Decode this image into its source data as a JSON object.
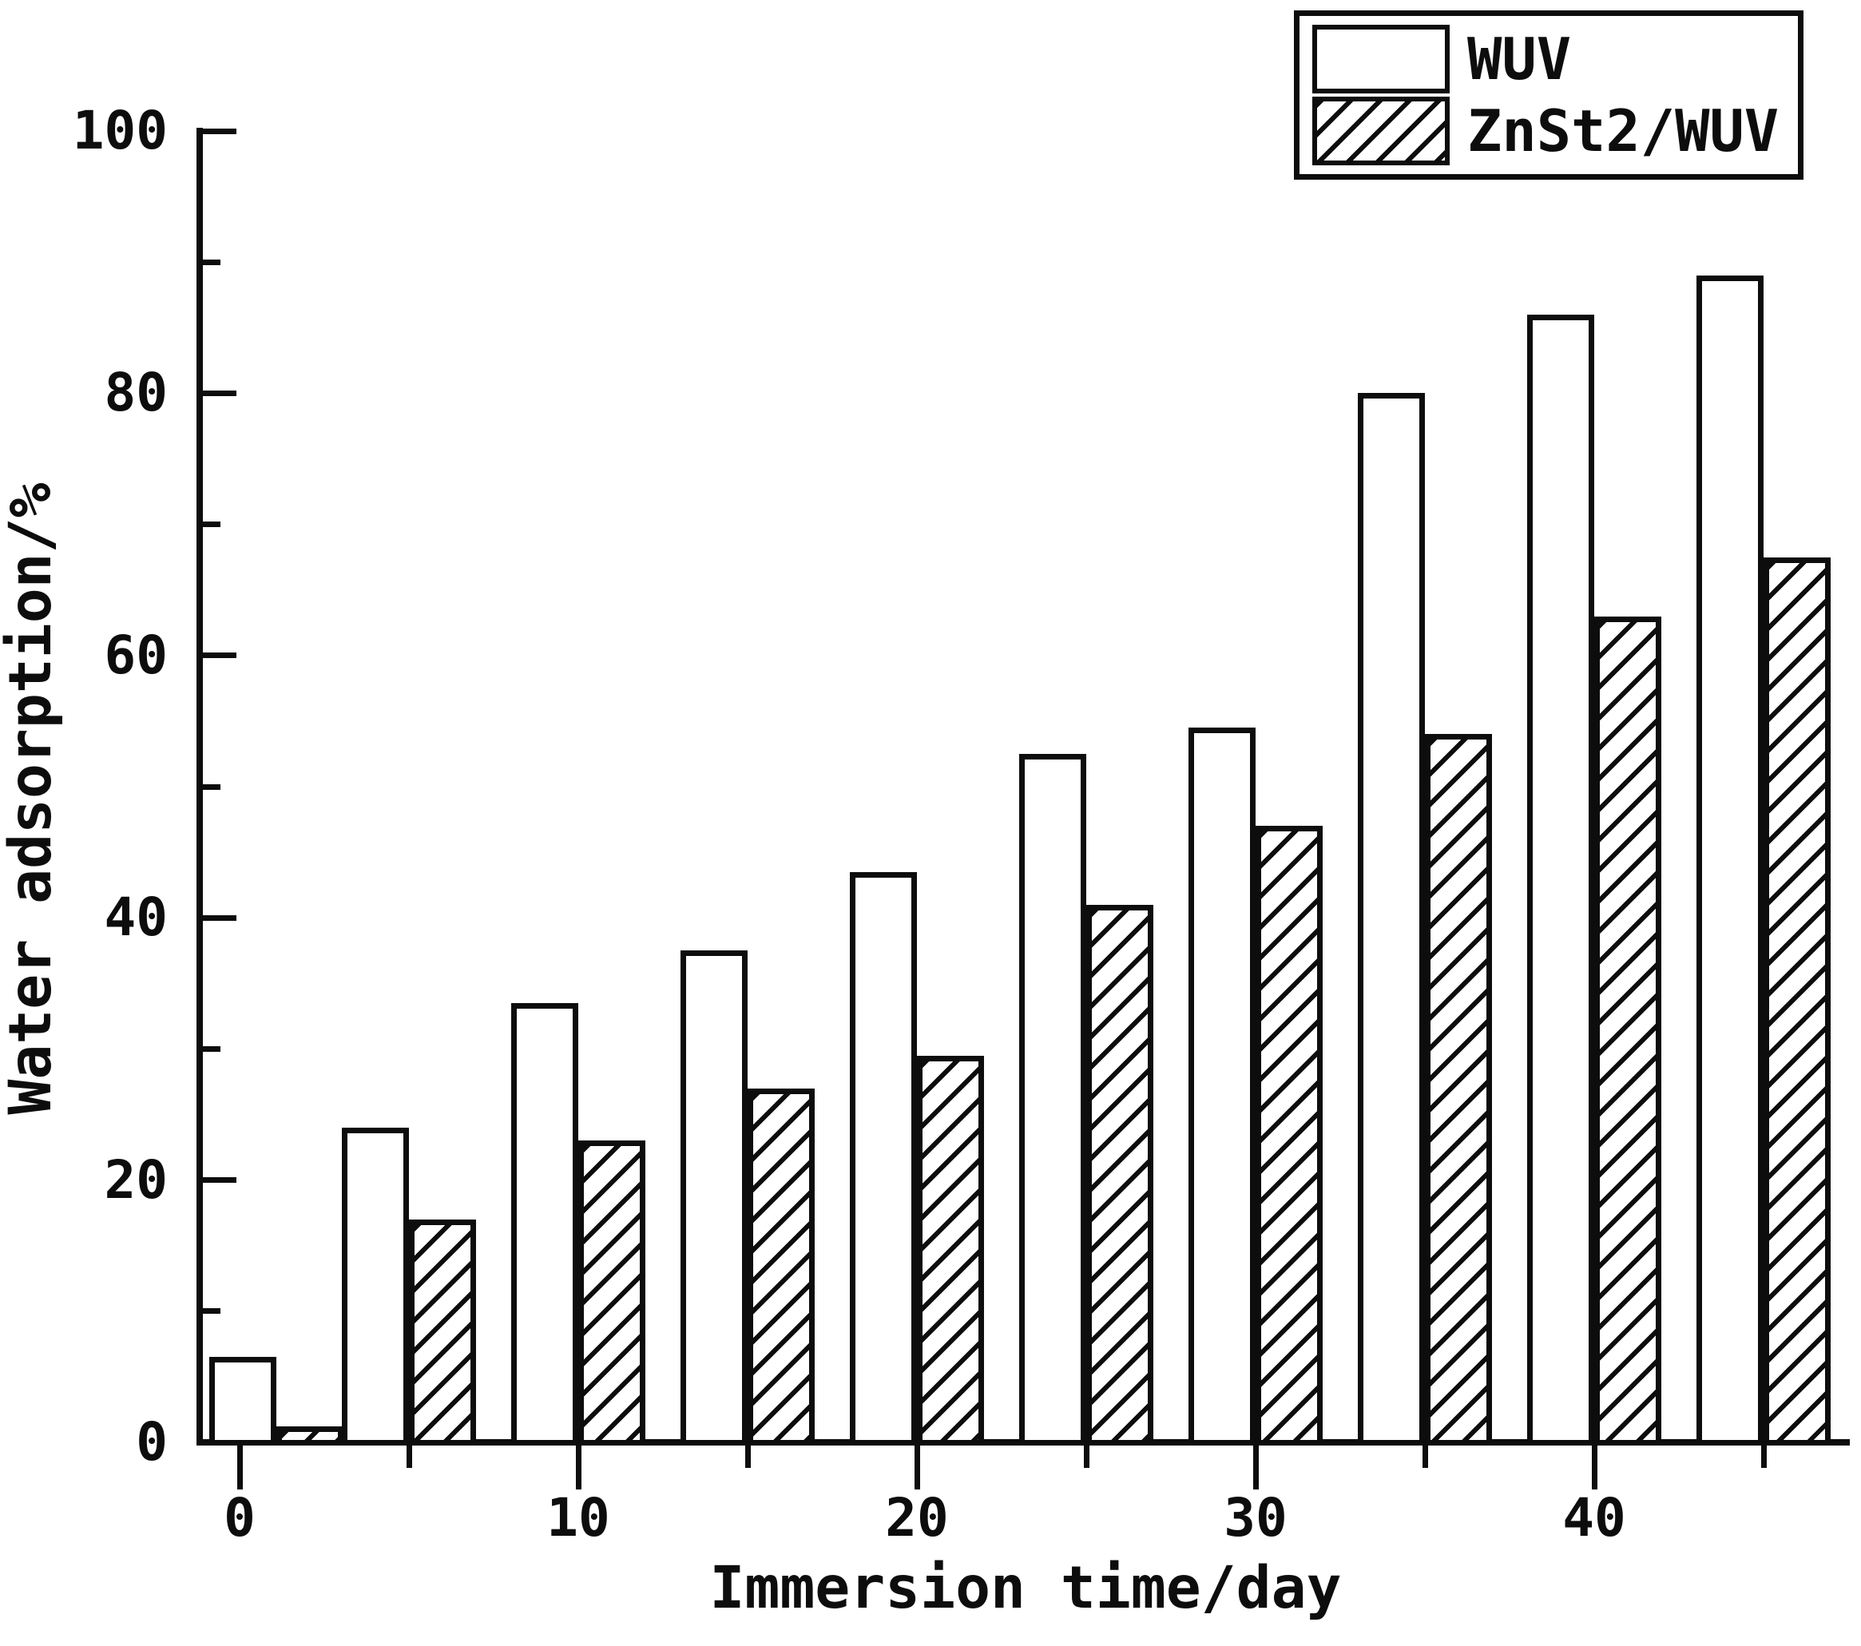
{
  "figure": {
    "background_color": "#ffffff",
    "ink_color": "#0d0d0d"
  },
  "chart_data": {
    "type": "bar",
    "title": "",
    "xlabel": "Immersion time/day",
    "ylabel": "Water adsorption/%",
    "categories": [
      0,
      5,
      10,
      15,
      20,
      25,
      30,
      35,
      40,
      45
    ],
    "series": [
      {
        "name": "WUV",
        "pattern": "plain",
        "values": [
          6.5,
          24,
          33.5,
          37.5,
          43.5,
          52.5,
          54.5,
          80,
          86,
          89
        ]
      },
      {
        "name": "ZnSt2/WUV",
        "pattern": "hatch",
        "values": [
          1.2,
          17,
          23,
          27,
          29.5,
          41,
          47,
          54,
          63,
          67.5
        ]
      }
    ],
    "xlim": [
      -1.3,
      47.5
    ],
    "ylim": [
      0,
      100
    ],
    "x_major_ticks": [
      0,
      10,
      20,
      30,
      40
    ],
    "x_tick_labels": [
      "0",
      "10",
      "20",
      "30",
      "40"
    ],
    "x_minor_ticks": [
      5,
      15,
      25,
      35,
      45
    ],
    "y_major_ticks": [
      0,
      20,
      40,
      60,
      80,
      100
    ],
    "y_tick_labels": [
      "0",
      "20",
      "40",
      "60",
      "80",
      "100"
    ],
    "y_minor_ticks": [
      10,
      30,
      50,
      70,
      90
    ],
    "grid": false,
    "legend_position": "top-right",
    "bar_width_days": 2
  },
  "legend": {
    "entries": [
      {
        "label": "WUV",
        "pattern": "plain"
      },
      {
        "label": "ZnSt2/WUV",
        "pattern": "hatch"
      }
    ]
  }
}
